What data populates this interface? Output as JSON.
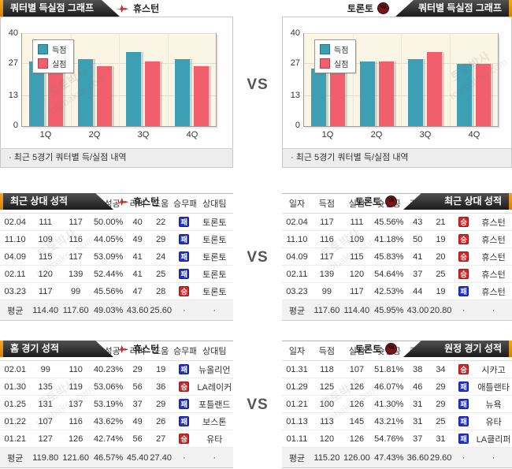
{
  "page": {
    "vs": "VS"
  },
  "watermark": {
    "brand": "토토박사",
    "site": "totobaksa.com"
  },
  "badges": {
    "win": "승",
    "loss": "패"
  },
  "chart_note": "· 최근 5경기 쿼터별 득/실점 내역",
  "headers": {
    "chart_left": {
      "tab": "쿼터별 득실점 그래프",
      "team": "휴스턴"
    },
    "chart_right": {
      "tab": "쿼터별 득실점 그래프",
      "team": "토론토"
    },
    "mid_left": {
      "tab": "최근 상대 성적",
      "team": "휴스턴"
    },
    "mid_right": {
      "tab": "최근 상대 성적",
      "team": "토론토"
    },
    "bottom_left": {
      "tab": "홈 경기 성적",
      "team": "휴스턴"
    },
    "bottom_right": {
      "tab": "원정 경기 성적",
      "team": "토론토"
    }
  },
  "chart_data": [
    {
      "type": "bar",
      "title": "쿼터별 득실점 그래프 - 휴스턴",
      "categories": [
        "1Q",
        "2Q",
        "3Q",
        "4Q"
      ],
      "series": [
        {
          "name": "득점",
          "color": "#3d9fb4",
          "values": [
            28.2,
            29.1,
            32.2,
            29.2
          ]
        },
        {
          "name": "실점",
          "color": "#f25f6c",
          "values": [
            31.2,
            26.0,
            28.2,
            26.0
          ]
        }
      ],
      "ylim": [
        0,
        40
      ],
      "yticks": [
        0,
        13,
        27,
        40
      ],
      "grid": true,
      "legend_position": "top-left"
    },
    {
      "type": "bar",
      "title": "쿼터별 득실점 그래프 - 토론토",
      "categories": [
        "1Q",
        "2Q",
        "3Q",
        "4Q"
      ],
      "series": [
        {
          "name": "득점",
          "color": "#3d9fb4",
          "values": [
            24.9,
            28.1,
            29.2,
            27.1
          ]
        },
        {
          "name": "실점",
          "color": "#f25f6c",
          "values": [
            30.8,
            28.2,
            32.0,
            27.1
          ]
        }
      ],
      "ylim": [
        0,
        40
      ],
      "yticks": [
        0,
        13,
        27,
        40
      ],
      "grid": true,
      "legend_position": "top-left"
    }
  ],
  "tables": {
    "columns": [
      "일자",
      "득점",
      "실점",
      "슛성공",
      "리바",
      "도움",
      "승무패",
      "상대팀"
    ],
    "avg_label": "평균",
    "dot": "·",
    "mid_left": {
      "rows": [
        {
          "date": "02.04",
          "score": "111",
          "allow": "117",
          "fg": "50.00%",
          "reb": "40",
          "ast": "22",
          "result": "loss",
          "opp": "토론토"
        },
        {
          "date": "11.10",
          "score": "109",
          "allow": "116",
          "fg": "44.05%",
          "reb": "49",
          "ast": "29",
          "result": "loss",
          "opp": "토론토"
        },
        {
          "date": "04.09",
          "score": "115",
          "allow": "117",
          "fg": "53.09%",
          "reb": "41",
          "ast": "24",
          "result": "loss",
          "opp": "토론토"
        },
        {
          "date": "02.11",
          "score": "120",
          "allow": "139",
          "fg": "52.44%",
          "reb": "41",
          "ast": "25",
          "result": "loss",
          "opp": "토론토"
        },
        {
          "date": "03.23",
          "score": "117",
          "allow": "99",
          "fg": "45.56%",
          "reb": "47",
          "ast": "28",
          "result": "win",
          "opp": "토론토"
        }
      ],
      "avg": {
        "score": "114.40",
        "allow": "117.60",
        "fg": "49.03%",
        "reb": "43.60",
        "ast": "25.60"
      }
    },
    "mid_right": {
      "rows": [
        {
          "date": "02.04",
          "score": "117",
          "allow": "111",
          "fg": "45.56%",
          "reb": "43",
          "ast": "21",
          "result": "win",
          "opp": "휴스턴"
        },
        {
          "date": "11.10",
          "score": "116",
          "allow": "109",
          "fg": "41.18%",
          "reb": "50",
          "ast": "19",
          "result": "win",
          "opp": "휴스턴"
        },
        {
          "date": "04.09",
          "score": "117",
          "allow": "115",
          "fg": "45.83%",
          "reb": "41",
          "ast": "20",
          "result": "win",
          "opp": "휴스턴"
        },
        {
          "date": "02.11",
          "score": "139",
          "allow": "120",
          "fg": "54.64%",
          "reb": "37",
          "ast": "25",
          "result": "win",
          "opp": "휴스턴"
        },
        {
          "date": "03.23",
          "score": "99",
          "allow": "117",
          "fg": "42.53%",
          "reb": "44",
          "ast": "19",
          "result": "loss",
          "opp": "휴스턴"
        }
      ],
      "avg": {
        "score": "117.60",
        "allow": "114.40",
        "fg": "45.95%",
        "reb": "43.00",
        "ast": "20.80"
      }
    },
    "bottom_left": {
      "rows": [
        {
          "date": "02.01",
          "score": "99",
          "allow": "110",
          "fg": "40.23%",
          "reb": "29",
          "ast": "19",
          "result": "loss",
          "opp": "뉴올리언"
        },
        {
          "date": "01.30",
          "score": "135",
          "allow": "119",
          "fg": "53.06%",
          "reb": "56",
          "ast": "36",
          "result": "win",
          "opp": "LA레이커"
        },
        {
          "date": "01.25",
          "score": "131",
          "allow": "137",
          "fg": "53.19%",
          "reb": "37",
          "ast": "29",
          "result": "loss",
          "opp": "포틀랜드"
        },
        {
          "date": "01.22",
          "score": "107",
          "allow": "116",
          "fg": "43.62%",
          "reb": "49",
          "ast": "26",
          "result": "loss",
          "opp": "보스톤"
        },
        {
          "date": "01.21",
          "score": "127",
          "allow": "126",
          "fg": "42.74%",
          "reb": "56",
          "ast": "27",
          "result": "win",
          "opp": "유타"
        }
      ],
      "avg": {
        "score": "119.80",
        "allow": "121.60",
        "fg": "46.57%",
        "reb": "45.40",
        "ast": "27.40"
      }
    },
    "bottom_right": {
      "rows": [
        {
          "date": "01.31",
          "score": "118",
          "allow": "107",
          "fg": "51.81%",
          "reb": "38",
          "ast": "34",
          "result": "win",
          "opp": "시카고"
        },
        {
          "date": "01.29",
          "score": "125",
          "allow": "126",
          "fg": "46.07%",
          "reb": "46",
          "ast": "29",
          "result": "loss",
          "opp": "애틀랜타"
        },
        {
          "date": "01.21",
          "score": "100",
          "allow": "126",
          "fg": "41.30%",
          "reb": "31",
          "ast": "29",
          "result": "loss",
          "opp": "뉴욕"
        },
        {
          "date": "01.13",
          "score": "113",
          "allow": "145",
          "fg": "43.21%",
          "reb": "31",
          "ast": "25",
          "result": "loss",
          "opp": "유타"
        },
        {
          "date": "01.11",
          "score": "120",
          "allow": "126",
          "fg": "54.76%",
          "reb": "37",
          "ast": "31",
          "result": "loss",
          "opp": "LA클리퍼"
        }
      ],
      "avg": {
        "score": "115.20",
        "allow": "126.00",
        "fg": "47.43%",
        "reb": "36.60",
        "ast": "29.60"
      }
    }
  }
}
